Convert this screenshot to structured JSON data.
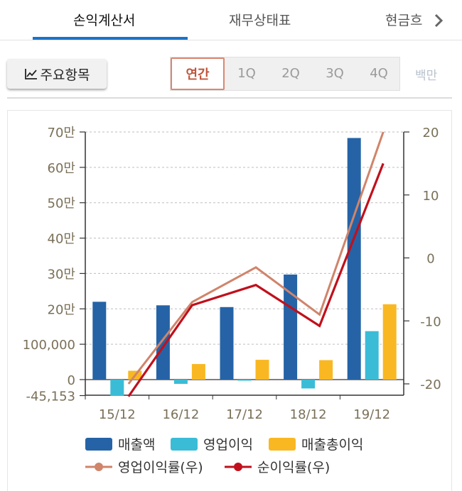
{
  "tabs": [
    {
      "label": "손익계산서",
      "active": true
    },
    {
      "label": "재무상태표",
      "active": false
    },
    {
      "label": "현금흐",
      "active": false
    }
  ],
  "key_button": {
    "label": "주요항목",
    "icon": "line-chart-icon"
  },
  "periods": [
    {
      "label": "연간",
      "active": true
    },
    {
      "label": "1Q",
      "active": false
    },
    {
      "label": "2Q",
      "active": false
    },
    {
      "label": "3Q",
      "active": false
    },
    {
      "label": "4Q",
      "active": false
    }
  ],
  "unit_label": "백만",
  "colors": {
    "sales": "#2563a6",
    "op_income": "#3bbcd6",
    "gross": "#f9b822",
    "op_margin": "#d0846a",
    "net_margin": "#c0101c",
    "accent": "#1a73c8"
  },
  "chart_data": {
    "type": "bar",
    "categories": [
      "15/12",
      "16/12",
      "17/12",
      "18/12",
      "19/12"
    ],
    "series": [
      {
        "name": "매출액",
        "type": "bar",
        "axis": "left",
        "values": [
          220000,
          210000,
          205000,
          297000,
          683000
        ]
      },
      {
        "name": "영업이익",
        "type": "bar",
        "axis": "left",
        "values": [
          -45153,
          -12000,
          -3000,
          -25000,
          137000
        ]
      },
      {
        "name": "매출총이익",
        "type": "bar",
        "axis": "left",
        "values": [
          25000,
          44000,
          56000,
          55000,
          213000
        ]
      },
      {
        "name": "영업이익률(우)",
        "type": "line",
        "axis": "right",
        "values": [
          -20,
          -7,
          -1.5,
          -9,
          20
        ]
      },
      {
        "name": "순이익률(우)",
        "type": "line",
        "axis": "right",
        "values": [
          -22,
          -7.5,
          -4.3,
          -10.8,
          15
        ]
      }
    ],
    "left_axis": {
      "ylim": [
        -45153,
        700000
      ],
      "ticks": [
        {
          "value": 700000,
          "label": "70만"
        },
        {
          "value": 600000,
          "label": "60만"
        },
        {
          "value": 500000,
          "label": "50만"
        },
        {
          "value": 400000,
          "label": "40만"
        },
        {
          "value": 300000,
          "label": "30만"
        },
        {
          "value": 200000,
          "label": "20만"
        },
        {
          "value": 100000,
          "label": "100,000"
        },
        {
          "value": 0,
          "label": "0"
        },
        {
          "value": -45153,
          "label": "-45,153"
        }
      ]
    },
    "right_axis": {
      "ylim": [
        -20,
        20
      ],
      "ticks": [
        {
          "value": 20,
          "label": "20"
        },
        {
          "value": 10,
          "label": "10"
        },
        {
          "value": 0,
          "label": "0"
        },
        {
          "value": -10,
          "label": "-10"
        },
        {
          "value": -20,
          "label": "-20"
        }
      ]
    },
    "grid": true,
    "legend_position": "bottom"
  }
}
